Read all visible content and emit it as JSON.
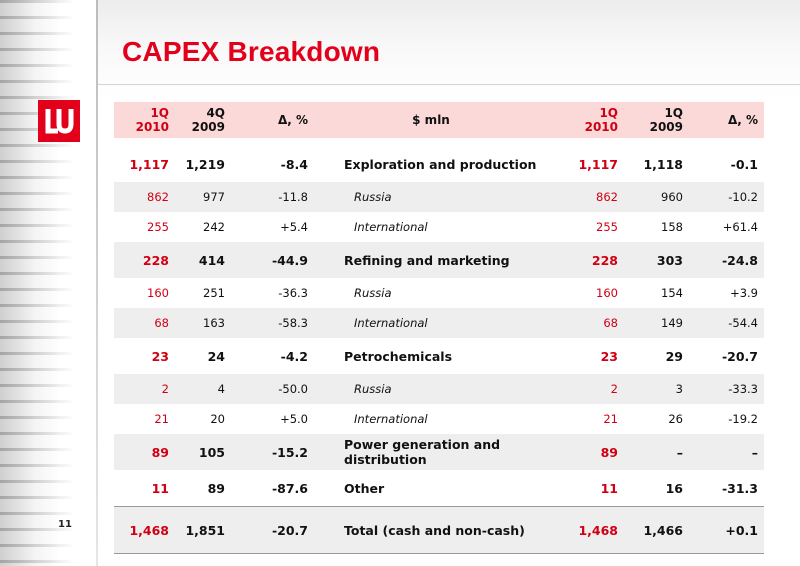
{
  "title": "CAPEX Breakdown",
  "page_number": "11",
  "brand_color": "#e2001a",
  "header": {
    "c1": [
      "1Q",
      "2010"
    ],
    "c2": [
      "4Q",
      "2009"
    ],
    "c3": "Δ, %",
    "c4": "$ mln",
    "c5": [
      "1Q",
      "2010"
    ],
    "c6": [
      "1Q",
      "2009"
    ],
    "c7": "Δ, %"
  },
  "rows": [
    {
      "c1": "1,117",
      "c2": "1,219",
      "c3": "-8.4",
      "c4": "Exploration and production",
      "c5": "1,117",
      "c6": "1,118",
      "c7": "-0.1"
    },
    {
      "c1": "862",
      "c2": "977",
      "c3": "-11.8",
      "c4": "Russia",
      "c5": "862",
      "c6": "960",
      "c7": "-10.2"
    },
    {
      "c1": "255",
      "c2": "242",
      "c3": "+5.4",
      "c4": "International",
      "c5": "255",
      "c6": "158",
      "c7": "+61.4"
    },
    {
      "c1": "228",
      "c2": "414",
      "c3": "-44.9",
      "c4": "Refining and marketing",
      "c5": "228",
      "c6": "303",
      "c7": "-24.8"
    },
    {
      "c1": "160",
      "c2": "251",
      "c3": "-36.3",
      "c4": "Russia",
      "c5": "160",
      "c6": "154",
      "c7": "+3.9"
    },
    {
      "c1": "68",
      "c2": "163",
      "c3": "-58.3",
      "c4": "International",
      "c5": "68",
      "c6": "149",
      "c7": "-54.4"
    },
    {
      "c1": "23",
      "c2": "24",
      "c3": "-4.2",
      "c4": "Petrochemicals",
      "c5": "23",
      "c6": "29",
      "c7": "-20.7"
    },
    {
      "c1": "2",
      "c2": "4",
      "c3": "-50.0",
      "c4": "Russia",
      "c5": "2",
      "c6": "3",
      "c7": "-33.3"
    },
    {
      "c1": "21",
      "c2": "20",
      "c3": "+5.0",
      "c4": "International",
      "c5": "21",
      "c6": "26",
      "c7": "-19.2"
    },
    {
      "c1": "89",
      "c2": "105",
      "c3": "-15.2",
      "c4": "Power generation and distribution",
      "c5": "89",
      "c6": "–",
      "c7": "–"
    },
    {
      "c1": "11",
      "c2": "89",
      "c3": "-87.6",
      "c4": "Other",
      "c5": "11",
      "c6": "16",
      "c7": "-31.3"
    },
    {
      "c1": "1,468",
      "c2": "1,851",
      "c3": "-20.7",
      "c4": "Total (cash and non-cash)",
      "c5": "1,468",
      "c6": "1,466",
      "c7": "+0.1"
    }
  ]
}
